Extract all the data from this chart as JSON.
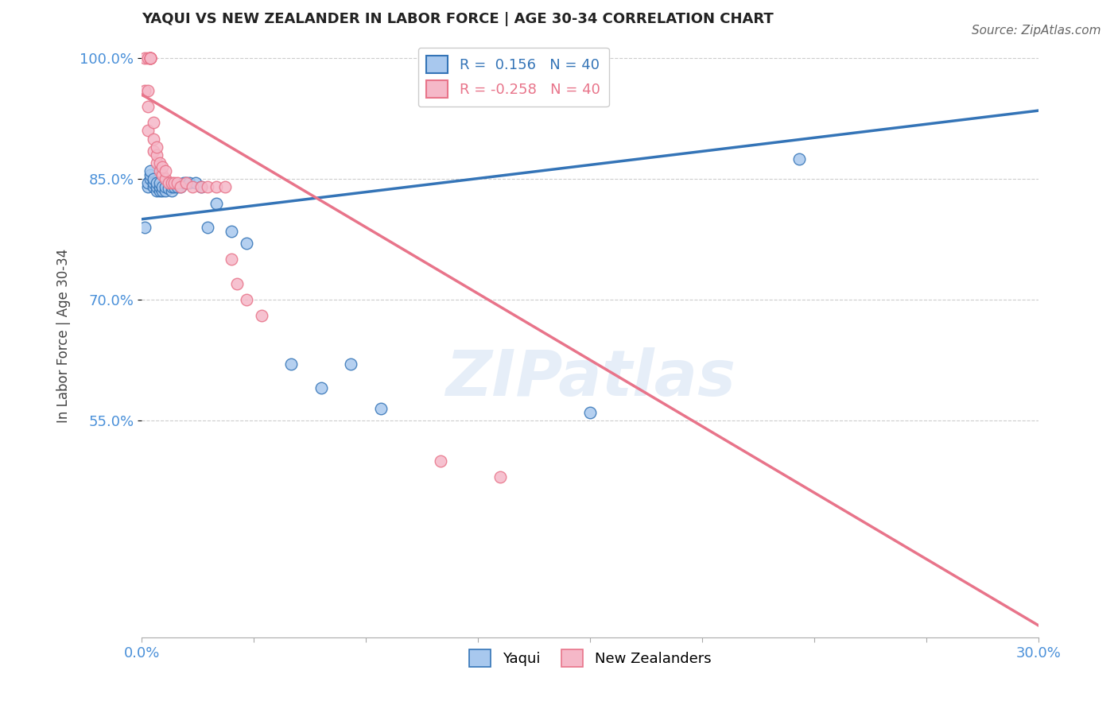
{
  "title": "YAQUI VS NEW ZEALANDER IN LABOR FORCE | AGE 30-34 CORRELATION CHART",
  "source_text": "Source: ZipAtlas.com",
  "ylabel": "In Labor Force | Age 30-34",
  "legend_label_blue": "Yaqui",
  "legend_label_pink": "New Zealanders",
  "R_blue": 0.156,
  "N_blue": 40,
  "R_pink": -0.258,
  "N_pink": 40,
  "xlim": [
    0.0,
    0.3
  ],
  "ylim": [
    0.28,
    1.03
  ],
  "yticks": [
    0.55,
    0.7,
    0.85,
    1.0
  ],
  "ytick_labels": [
    "55.0%",
    "70.0%",
    "85.0%",
    "100.0%"
  ],
  "xticks": [
    0.0,
    0.0375,
    0.075,
    0.1125,
    0.15,
    0.1875,
    0.225,
    0.2625,
    0.3
  ],
  "color_blue": "#a8c8ee",
  "color_pink": "#f5b8c8",
  "color_blue_line": "#3474b7",
  "color_pink_line": "#e8748a",
  "color_grid": "#cccccc",
  "color_axis_labels": "#4a90d9",
  "color_title": "#222222",
  "watermark": "ZIPatlas",
  "blue_x": [
    0.001,
    0.002,
    0.002,
    0.003,
    0.003,
    0.003,
    0.004,
    0.004,
    0.004,
    0.005,
    0.005,
    0.005,
    0.006,
    0.006,
    0.006,
    0.007,
    0.007,
    0.008,
    0.008,
    0.009,
    0.01,
    0.01,
    0.011,
    0.012,
    0.013,
    0.014,
    0.015,
    0.016,
    0.018,
    0.02,
    0.022,
    0.025,
    0.03,
    0.035,
    0.05,
    0.06,
    0.07,
    0.08,
    0.15,
    0.22
  ],
  "blue_y": [
    0.79,
    0.84,
    0.845,
    0.85,
    0.855,
    0.86,
    0.84,
    0.845,
    0.85,
    0.835,
    0.84,
    0.845,
    0.835,
    0.84,
    0.845,
    0.835,
    0.84,
    0.835,
    0.84,
    0.838,
    0.835,
    0.84,
    0.84,
    0.84,
    0.84,
    0.845,
    0.845,
    0.845,
    0.845,
    0.84,
    0.79,
    0.82,
    0.785,
    0.77,
    0.62,
    0.59,
    0.62,
    0.565,
    0.56,
    0.875
  ],
  "pink_x": [
    0.001,
    0.001,
    0.002,
    0.002,
    0.002,
    0.002,
    0.003,
    0.003,
    0.003,
    0.003,
    0.003,
    0.004,
    0.004,
    0.004,
    0.005,
    0.005,
    0.005,
    0.006,
    0.006,
    0.007,
    0.007,
    0.008,
    0.008,
    0.009,
    0.01,
    0.011,
    0.012,
    0.013,
    0.015,
    0.017,
    0.02,
    0.022,
    0.025,
    0.028,
    0.03,
    0.032,
    0.035,
    0.04,
    0.1,
    0.12
  ],
  "pink_y": [
    0.96,
    1.0,
    0.91,
    0.94,
    0.96,
    1.0,
    1.0,
    1.0,
    1.0,
    1.0,
    1.0,
    0.92,
    0.885,
    0.9,
    0.87,
    0.88,
    0.89,
    0.86,
    0.87,
    0.855,
    0.865,
    0.85,
    0.86,
    0.845,
    0.845,
    0.845,
    0.845,
    0.84,
    0.845,
    0.84,
    0.84,
    0.84,
    0.84,
    0.84,
    0.75,
    0.72,
    0.7,
    0.68,
    0.5,
    0.48
  ],
  "blue_trend_x": [
    0.0,
    0.3
  ],
  "blue_trend_y": [
    0.8,
    0.935
  ],
  "pink_trend_x": [
    0.0,
    0.3
  ],
  "pink_trend_y": [
    0.955,
    0.295
  ]
}
